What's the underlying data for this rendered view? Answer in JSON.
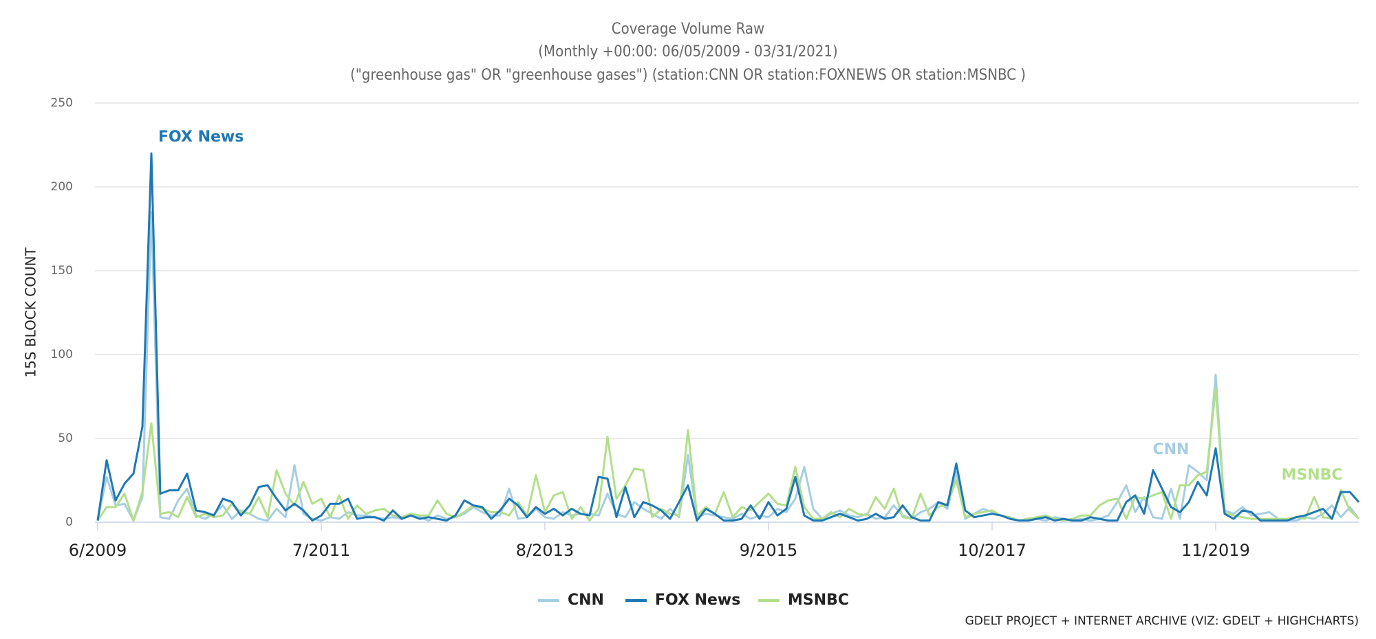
{
  "chart_data": {
    "type": "line",
    "title": "Coverage Volume Raw",
    "subtitle": "(Monthly +00:00: 06/05/2009 - 03/31/2021)",
    "query": "(\"greenhouse gas\" OR \"greenhouse gases\") (station:CNN OR station:FOXNEWS OR station:MSNBC )",
    "y_label": "15S BLOCK COUNT",
    "credits": "GDELT PROJECT + INTERNET ARCHIVE (VIZ: GDELT + HIGHCHARTS)",
    "categories": [
      "6/2009",
      null,
      null,
      null,
      null,
      null,
      null,
      null,
      null,
      null,
      null,
      null,
      null,
      null,
      null,
      null,
      null,
      null,
      null,
      null,
      null,
      null,
      null,
      null,
      null,
      "7/2011",
      null,
      null,
      null,
      null,
      null,
      null,
      null,
      null,
      null,
      null,
      null,
      null,
      null,
      null,
      null,
      null,
      null,
      null,
      null,
      null,
      null,
      null,
      null,
      null,
      "8/2013",
      null,
      null,
      null,
      null,
      null,
      null,
      null,
      null,
      null,
      null,
      null,
      null,
      null,
      null,
      null,
      null,
      null,
      null,
      null,
      null,
      null,
      null,
      null,
      null,
      "9/2015",
      null,
      null,
      null,
      null,
      null,
      null,
      null,
      null,
      null,
      null,
      null,
      null,
      null,
      null,
      null,
      null,
      null,
      null,
      null,
      null,
      null,
      null,
      null,
      null,
      "10/2017",
      null,
      null,
      null,
      null,
      null,
      null,
      null,
      null,
      null,
      null,
      null,
      null,
      null,
      null,
      null,
      null,
      null,
      null,
      null,
      null,
      null,
      null,
      null,
      null,
      "11/2019",
      null,
      null,
      null,
      null,
      null,
      null,
      null,
      null,
      null,
      null,
      null,
      null,
      null,
      null,
      null,
      null
    ],
    "ylim": [
      0,
      250
    ],
    "yticks": [
      0,
      50,
      100,
      150,
      200,
      250
    ],
    "grid": true,
    "legend": "bottom",
    "series": [
      {
        "name": "CNN",
        "color": "#a6cee3",
        "values": [
          1,
          27,
          10,
          11,
          1,
          15,
          185,
          3,
          2,
          13,
          20,
          4,
          2,
          5,
          10,
          2,
          7,
          5,
          2,
          1,
          8,
          3,
          34,
          5,
          2,
          1,
          3,
          2,
          6,
          4,
          4,
          3,
          2,
          3,
          2,
          5,
          3,
          1,
          4,
          2,
          3,
          5,
          9,
          6,
          4,
          4,
          20,
          2,
          3,
          8,
          3,
          2,
          6,
          4,
          5,
          5,
          4,
          17,
          5,
          3,
          12,
          8,
          5,
          2,
          8,
          3,
          40,
          3,
          5,
          4,
          3,
          2,
          5,
          2,
          4,
          3,
          8,
          6,
          14,
          33,
          8,
          2,
          5,
          7,
          4,
          3,
          5,
          2,
          3,
          10,
          4,
          2,
          6,
          8,
          12,
          8,
          30,
          2,
          5,
          8,
          6,
          4,
          3,
          1,
          2,
          2,
          1,
          3,
          2,
          1,
          2,
          1,
          2,
          4,
          12,
          22,
          6,
          15,
          3,
          2,
          20,
          2,
          34,
          30,
          25,
          88,
          7,
          5,
          9,
          4,
          5,
          6,
          2,
          1,
          1,
          3,
          2,
          5,
          10,
          3,
          9,
          2
        ]
      },
      {
        "name": "FOX News",
        "color": "#1f78b4",
        "values": [
          1,
          37,
          13,
          23,
          29,
          57,
          220,
          17,
          19,
          19,
          29,
          7,
          6,
          4,
          14,
          12,
          4,
          10,
          21,
          22,
          14,
          7,
          11,
          7,
          1,
          4,
          11,
          11,
          14,
          2,
          3,
          3,
          1,
          7,
          2,
          4,
          2,
          3,
          2,
          1,
          4,
          13,
          10,
          9,
          2,
          7,
          14,
          10,
          3,
          9,
          5,
          8,
          4,
          8,
          5,
          4,
          27,
          26,
          3,
          21,
          3,
          12,
          10,
          7,
          2,
          12,
          22,
          1,
          8,
          5,
          1,
          1,
          2,
          10,
          2,
          12,
          4,
          8,
          27,
          4,
          1,
          1,
          3,
          5,
          3,
          1,
          2,
          5,
          2,
          3,
          10,
          3,
          1,
          1,
          12,
          10,
          35,
          7,
          3,
          4,
          5,
          4,
          2,
          1,
          1,
          2,
          3,
          1,
          2,
          1,
          1,
          3,
          2,
          1,
          1,
          12,
          16,
          5,
          31,
          20,
          9,
          6,
          12,
          24,
          16,
          44,
          5,
          2,
          7,
          6,
          1,
          1,
          1,
          1,
          3,
          4,
          6,
          8,
          2,
          18,
          18,
          12
        ]
      },
      {
        "name": "MSNBC",
        "color": "#b2df8a",
        "values": [
          1,
          9,
          9,
          17,
          1,
          18,
          59,
          5,
          6,
          3,
          15,
          3,
          5,
          3,
          4,
          11,
          6,
          5,
          15,
          3,
          31,
          17,
          10,
          24,
          11,
          14,
          3,
          16,
          2,
          10,
          5,
          7,
          8,
          4,
          3,
          5,
          4,
          4,
          13,
          5,
          3,
          6,
          10,
          8,
          6,
          6,
          4,
          12,
          4,
          28,
          6,
          16,
          18,
          2,
          9,
          1,
          8,
          51,
          14,
          22,
          32,
          31,
          3,
          8,
          5,
          4,
          55,
          4,
          9,
          5,
          18,
          3,
          9,
          7,
          12,
          17,
          11,
          10,
          33,
          9,
          2,
          2,
          6,
          3,
          8,
          5,
          4,
          15,
          8,
          20,
          3,
          2,
          17,
          4,
          9,
          11,
          25,
          3,
          5,
          6,
          7,
          4,
          3,
          1,
          2,
          3,
          4,
          2,
          1,
          2,
          4,
          4,
          10,
          13,
          14,
          2,
          15,
          14,
          16,
          18,
          2,
          22,
          22,
          28,
          30,
          80,
          6,
          4,
          3,
          2,
          2,
          2,
          2,
          2,
          3,
          2,
          15,
          3,
          2,
          19,
          7,
          2
        ]
      }
    ]
  }
}
